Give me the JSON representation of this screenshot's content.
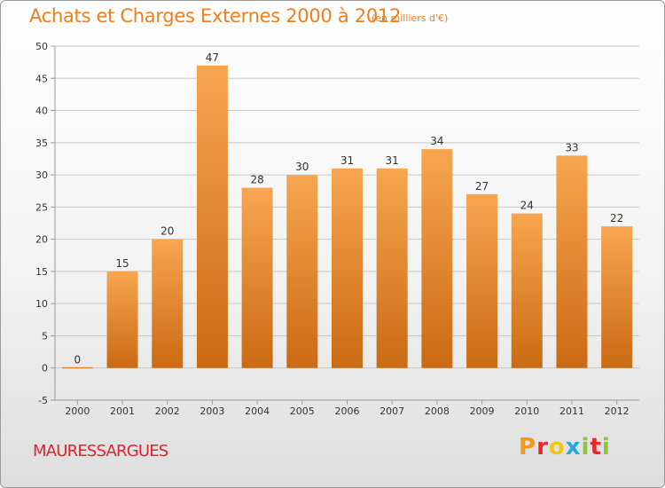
{
  "header": {
    "title": "Achats et Charges Externes 2000 à 2012",
    "subtitle": "(en milliers d'€)"
  },
  "footer": {
    "commune": "MAURESSARGUES",
    "brand": "Proxiti",
    "brand_colors": [
      "#f29a1e",
      "#e8262c",
      "#f2c418",
      "#2aa5dd",
      "#8cc43f",
      "#e8262c",
      "#8cc43f"
    ]
  },
  "colors": {
    "bar_top": "#f7a650",
    "bar_bottom": "#cb6a12",
    "grid": "#c8c8c8",
    "axis": "#9a9a9a",
    "accent": "#f07e1c",
    "commune": "#e6202f"
  },
  "chart_data": {
    "type": "bar",
    "title": "Achats et Charges Externes 2000 à 2012",
    "subtitle": "(en milliers d'€)",
    "xlabel": "",
    "ylabel": "",
    "categories": [
      "2000",
      "2001",
      "2002",
      "2003",
      "2004",
      "2005",
      "2006",
      "2007",
      "2008",
      "2009",
      "2010",
      "2011",
      "2012"
    ],
    "values": [
      0,
      15,
      20,
      47,
      28,
      30,
      31,
      31,
      34,
      27,
      24,
      33,
      22
    ],
    "ylim": [
      -5,
      50
    ],
    "yticks": [
      -5,
      0,
      5,
      10,
      15,
      20,
      25,
      30,
      35,
      40,
      45,
      50
    ],
    "grid": true,
    "legend": "none"
  }
}
